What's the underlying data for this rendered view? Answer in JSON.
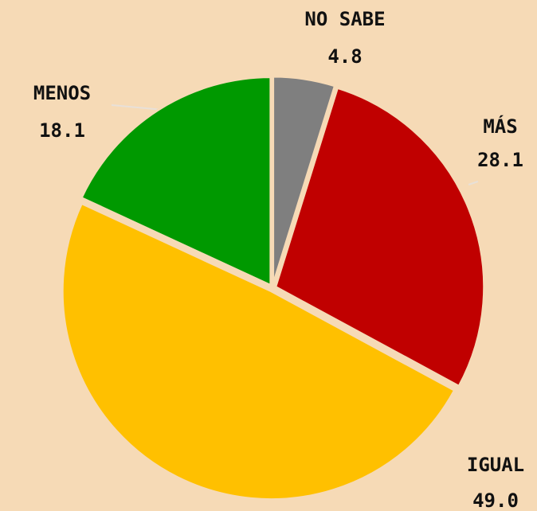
{
  "chart_data": {
    "type": "pie",
    "categories": [
      "NO SABE",
      "MÁS",
      "IGUAL",
      "MENOS"
    ],
    "values": [
      4.8,
      28.1,
      49.0,
      18.1
    ],
    "value_labels": [
      "4.8",
      "28.1",
      "49.0",
      "18.1"
    ],
    "colors": [
      "#7f7f7f",
      "#c00000",
      "#ffc000",
      "#009900"
    ]
  }
}
